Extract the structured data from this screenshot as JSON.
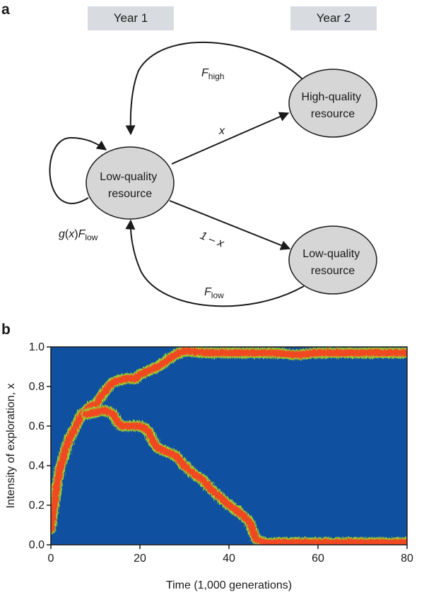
{
  "panel_a": {
    "label": "a",
    "year1": "Year 1",
    "year2": "Year 2",
    "nodes": {
      "center": [
        "Low-quality",
        "resource"
      ],
      "high": [
        "High-quality",
        "resource"
      ],
      "low2": [
        "Low-quality",
        "resource"
      ]
    },
    "edges": {
      "f_high": {
        "main": "F",
        "sub": "high"
      },
      "x": "x",
      "one_minus_x": "1 – x",
      "f_low": {
        "main": "F",
        "sub": "low"
      },
      "self_loop": {
        "g": "g",
        "open": "(",
        "x": "x",
        "close": ")",
        "main": "F",
        "sub": "low"
      }
    },
    "colors": {
      "node_fill": "#d6d6d6",
      "edge": "#1a1a1a"
    }
  },
  "panel_b": {
    "label": "b",
    "chart_data": {
      "type": "heatmap",
      "xlabel": "Time (1,000 generations)",
      "ylabel": "Intensity of exploration, x",
      "xlim": [
        0,
        80
      ],
      "ylim": [
        0,
        1.0
      ],
      "xticks": [
        "0",
        "20",
        "40",
        "60",
        "80"
      ],
      "yticks": [
        "0.0",
        "0.2",
        "0.4",
        "0.6",
        "0.8",
        "1.0"
      ],
      "colors": {
        "background": "#1050a0",
        "high_density": "#f04a20",
        "edge_density": "#9ccc30"
      },
      "branches": [
        {
          "name": "upper",
          "points": [
            [
              0,
              0.08
            ],
            [
              1,
              0.25
            ],
            [
              2,
              0.38
            ],
            [
              3,
              0.46
            ],
            [
              4,
              0.53
            ],
            [
              5,
              0.57
            ],
            [
              6,
              0.62
            ],
            [
              7,
              0.66
            ],
            [
              8,
              0.68
            ],
            [
              9,
              0.7
            ],
            [
              10,
              0.71
            ],
            [
              11,
              0.74
            ],
            [
              12,
              0.77
            ],
            [
              13,
              0.8
            ],
            [
              14,
              0.82
            ],
            [
              15,
              0.83
            ],
            [
              17,
              0.84
            ],
            [
              19,
              0.84
            ],
            [
              20,
              0.86
            ],
            [
              22,
              0.88
            ],
            [
              24,
              0.9
            ],
            [
              26,
              0.93
            ],
            [
              28,
              0.96
            ],
            [
              30,
              0.98
            ],
            [
              35,
              0.97
            ],
            [
              40,
              0.97
            ],
            [
              45,
              0.97
            ],
            [
              50,
              0.97
            ],
            [
              55,
              0.96
            ],
            [
              60,
              0.97
            ],
            [
              65,
              0.97
            ],
            [
              70,
              0.97
            ],
            [
              75,
              0.97
            ],
            [
              80,
              0.97
            ]
          ]
        },
        {
          "name": "lower",
          "points": [
            [
              8,
              0.66
            ],
            [
              10,
              0.67
            ],
            [
              12,
              0.68
            ],
            [
              14,
              0.66
            ],
            [
              15,
              0.62
            ],
            [
              16,
              0.6
            ],
            [
              18,
              0.6
            ],
            [
              20,
              0.6
            ],
            [
              21,
              0.59
            ],
            [
              22,
              0.57
            ],
            [
              23,
              0.52
            ],
            [
              24,
              0.49
            ],
            [
              26,
              0.47
            ],
            [
              28,
              0.45
            ],
            [
              30,
              0.4
            ],
            [
              32,
              0.36
            ],
            [
              34,
              0.33
            ],
            [
              36,
              0.28
            ],
            [
              38,
              0.24
            ],
            [
              40,
              0.2
            ],
            [
              42,
              0.17
            ],
            [
              44,
              0.13
            ],
            [
              45,
              0.1
            ],
            [
              46,
              0.03
            ],
            [
              48,
              0.01
            ],
            [
              50,
              0.01
            ],
            [
              55,
              0.01
            ],
            [
              60,
              0.01
            ],
            [
              65,
              0.01
            ],
            [
              70,
              0.01
            ],
            [
              75,
              0.01
            ],
            [
              80,
              0.01
            ]
          ]
        }
      ]
    }
  }
}
